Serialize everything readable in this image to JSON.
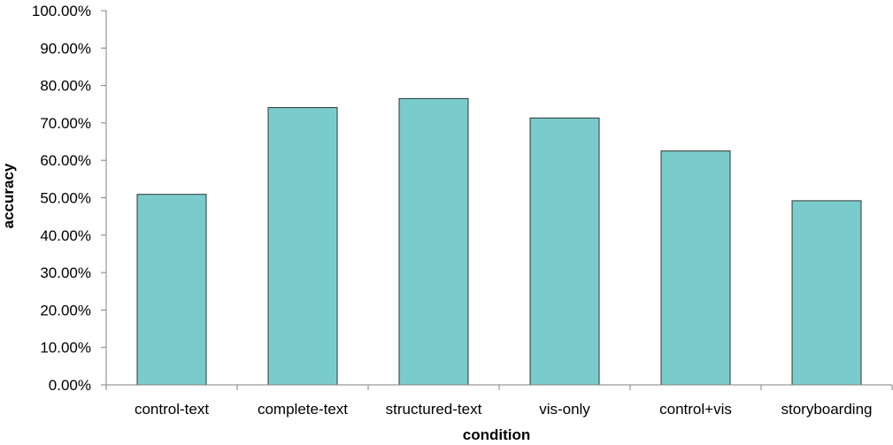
{
  "chart_data": {
    "type": "bar",
    "title": "",
    "xlabel": "condition",
    "ylabel": "accuracy",
    "categories": [
      "control-text",
      "complete-text",
      "structured-text",
      "vis-only",
      "control+vis",
      "storyboarding"
    ],
    "series": [
      {
        "values": [
          0.509,
          0.741,
          0.765,
          0.713,
          0.625,
          0.492
        ]
      }
    ],
    "ylim": [
      0,
      1
    ],
    "y_tick_values": [
      0,
      0.1,
      0.2,
      0.3,
      0.4,
      0.5,
      0.6,
      0.7,
      0.8,
      0.9,
      1.0
    ],
    "y_tick_labels": [
      "0.00%",
      "10.00%",
      "20.00%",
      "30.00%",
      "40.00%",
      "50.00%",
      "60.00%",
      "70.00%",
      "80.00%",
      "90.00%",
      "100.00%"
    ],
    "grid": false,
    "legend": "none",
    "colors": {
      "bar_fill": "#7acccc",
      "bar_stroke": "#333333",
      "axis": "#808080"
    }
  }
}
